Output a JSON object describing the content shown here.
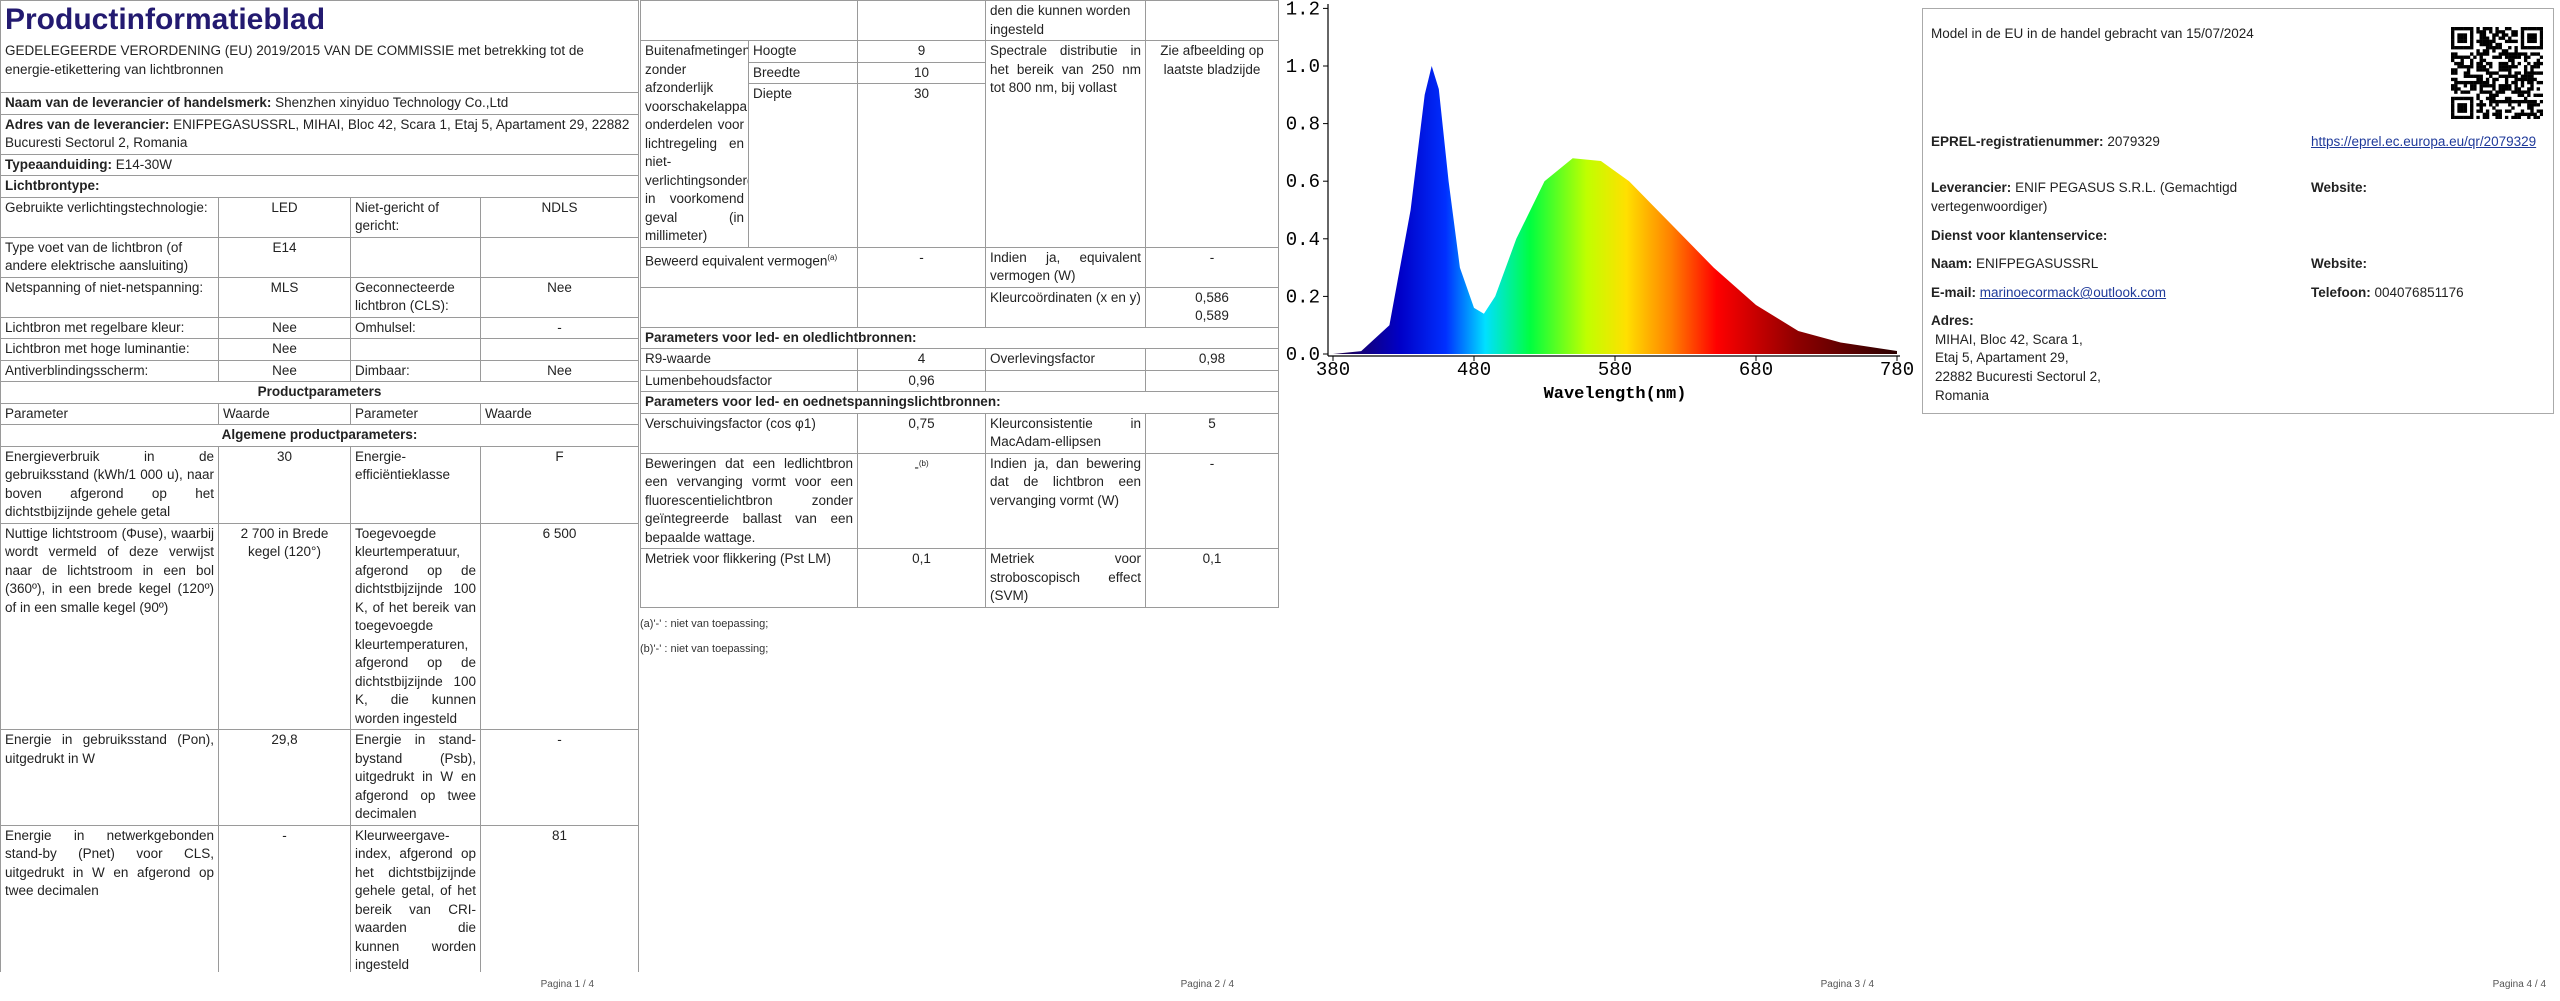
{
  "page1": {
    "title": "Productinformatieblad",
    "subtitle": "GEDELEGEERDE VERORDENING (EU) 2019/2015 VAN DE COMMISSIE met betrekking tot de energie-etikettering van lichtbronnen",
    "supplier": {
      "label": "Naam van de leverancier of handelsmerk:",
      "value": "Shenzhen xinyiduo Technology Co.,Ltd"
    },
    "address": {
      "label": "Adres van de leverancier:",
      "value": "ENIFPEGASUSSRL, MIHAI, Bloc 42, Scara 1, Etaj 5, Apartament 29, 22882 Bucuresti Sectorul 2, Romania"
    },
    "model": {
      "label": "Typeaanduiding:",
      "value": "E14-30W"
    },
    "light_source_type": "Lichtbrontype:",
    "light_source_rows": [
      [
        "Gebruikte verlichtingstechnologie:",
        "LED",
        "Niet-gericht of gericht:",
        "NDLS"
      ],
      [
        "Type voet van de lichtbron (of andere elektrische aansluiting)",
        "E14",
        null,
        null
      ],
      [
        "Netspanning of niet-netspanning:",
        "MLS",
        "Geconnecteerde lichtbron (CLS):",
        "Nee"
      ],
      [
        "Lichtbron met regelbare kleur:",
        "Nee",
        "Omhulsel:",
        "-"
      ],
      [
        "Lichtbron met hoge luminantie:",
        "Nee",
        null,
        null
      ],
      [
        "Antiverblindingsscherm:",
        "Nee",
        "Dimbaar:",
        "Nee"
      ]
    ],
    "product_parameters": "Productparameters",
    "header": [
      "Parameter",
      "Waarde",
      "Parameter",
      "Waarde"
    ],
    "general_parameters": "Algemene productparameters:",
    "parameter_rows": [
      [
        "Energieverbruik in de gebruiksstand (kWh/1 000 u), naar boven afgerond op het dichtstbijzijnde gehele getal",
        "30",
        "Energie-efficiëntieklasse",
        "F"
      ],
      [
        "Nuttige lichtstroom (Φuse), waarbij wordt vermeld of deze verwijst naar de lichtstroom in een bol (360º), in een brede kegel (120º) of in een smalle kegel (90º)",
        "2 700 in Brede kegel (120°)",
        "Toegevoegde kleurtemperatuur, afgerond op de dichtstbijzijnde 100 K, of het bereik van toegevoegde kleurtemperaturen, afgerond op de dichtstbijzijnde 100 K, die kunnen worden ingesteld",
        "6 500"
      ],
      [
        "Energie in gebruiksstand (Pon), uitgedrukt in W",
        "29,8",
        "Energie in stand-bystand (Psb), uitgedrukt in W en afgerond op twee decimalen",
        "-"
      ],
      [
        "Energie in netwerkgebonden stand-by (Pnet) voor CLS, uitgedrukt in W en afgerond op twee decimalen",
        "-",
        "Kleurweergave-index, afgerond op het dichtstbijzijnde gehele getal, of het bereik van CRI-waarden die kunnen worden ingesteld",
        "81"
      ]
    ],
    "footer": "Pagina 1 / 4"
  },
  "page2": {
    "continued": "den die kunnen worden ingesteld",
    "dimensions": {
      "label": "Buitenafmetingen zonder afzonderlijk voorschakelapparaat, onderdelen voor lichtregeling en niet-verlichtingsonderdelen, in voorkomend geval (in millimeter)",
      "items": [
        [
          "Hoogte",
          "9"
        ],
        [
          "Breedte",
          "10"
        ],
        [
          "Diepte",
          "30"
        ]
      ],
      "spectral_label": "Spectrale distributie in het bereik van 250 nm tot 800 nm, bij vollast",
      "spectral_value": "Zie afbeelding op laatste bladzijde"
    },
    "equivalent_power": {
      "label": "Beweerd equivalent vermogen",
      "note": "(a)",
      "value": "-",
      "label2": "Indien ja, equivalent vermogen (W)",
      "value2": "-"
    },
    "chromaticity": {
      "label": "Kleurcoördinaten (x en y)",
      "x": "0,586",
      "y": "0,589"
    },
    "led_section": "Parameters voor led- en oledlichtbronnen:",
    "led_rows": [
      [
        "R9-waarde",
        "4",
        "Overlevingsfactor",
        "0,98"
      ],
      [
        "Lumenbehoudsfactor",
        "0,96",
        null,
        null
      ]
    ],
    "mains_section": "Parameters voor led- en oednetspanningslichtbronnen:",
    "mains_rows": [
      [
        "Verschuivingsfactor (cos φ1)",
        "0,75",
        "Kleurconsistentie in MacAdam-ellipsen",
        "5"
      ],
      [
        "Beweringen dat een ledlichtbron een vervanging vormt voor een fluorescentielichtbron zonder geïntegreerde ballast van een bepaalde wattage.",
        "-",
        "Indien ja, dan bewering dat de lichtbron een vervanging vormt (W)",
        "-"
      ],
      [
        "Metriek voor flikkering (Pst LM)",
        "0,1",
        "Metriek voor stroboscopisch effect (SVM)",
        "0,1"
      ]
    ],
    "replacement_note": "(b)",
    "notes": [
      "(a)'-' : niet van toepassing;",
      "(b)'-' : niet van toepassing;"
    ],
    "footer": "Pagina 2 / 4"
  },
  "page3": {
    "chart_data": {
      "type": "area",
      "xlabel": "Wavelength(nm)",
      "xlim": [
        380,
        780
      ],
      "xticks": [
        380,
        480,
        580,
        680,
        780
      ],
      "ylim": [
        0,
        1.2
      ],
      "yticks": [
        {
          "value": 0,
          "label": "0.0"
        },
        {
          "value": 0.2,
          "label": "0.2"
        },
        {
          "value": 0.4,
          "label": "0.4"
        },
        {
          "value": 0.6,
          "label": "0.6"
        },
        {
          "value": 0.8,
          "label": "0.8"
        },
        {
          "value": 1,
          "label": "1.0"
        },
        {
          "value": 1.2,
          "label": "1.2"
        }
      ]
    },
    "footer": "Pagina 3 / 4"
  },
  "page4": {
    "market_date": "Model in de EU in de handel gebracht van 15/07/2024",
    "eprel": {
      "label": "EPREL-registratienummer:",
      "value": "2079329",
      "link": "https://eprel.ec.europa.eu/qr/2079329"
    },
    "supplier": {
      "label": "Leverancier:",
      "value": "ENIF PEGASUS S.R.L. (Gemachtigd vertegenwoordiger)",
      "website_label": "Website:"
    },
    "customer_service": "Dienst voor klantenservice:",
    "name": {
      "label": "Naam:",
      "value": "ENIFPEGASUSSRL",
      "website_label": "Website:"
    },
    "email": {
      "label": "E-mail:",
      "value": "marinoecormack@outlook.com",
      "phone_label": "Telefoon:",
      "phone": "004076851176"
    },
    "address": {
      "label": "Adres:",
      "lines": [
        "MIHAI, Bloc 42, Scara 1,",
        "Etaj 5, Apartament 29,",
        "22882 Bucuresti Sectorul 2,",
        "Romania"
      ]
    },
    "footer": "Pagina 4 / 4"
  }
}
